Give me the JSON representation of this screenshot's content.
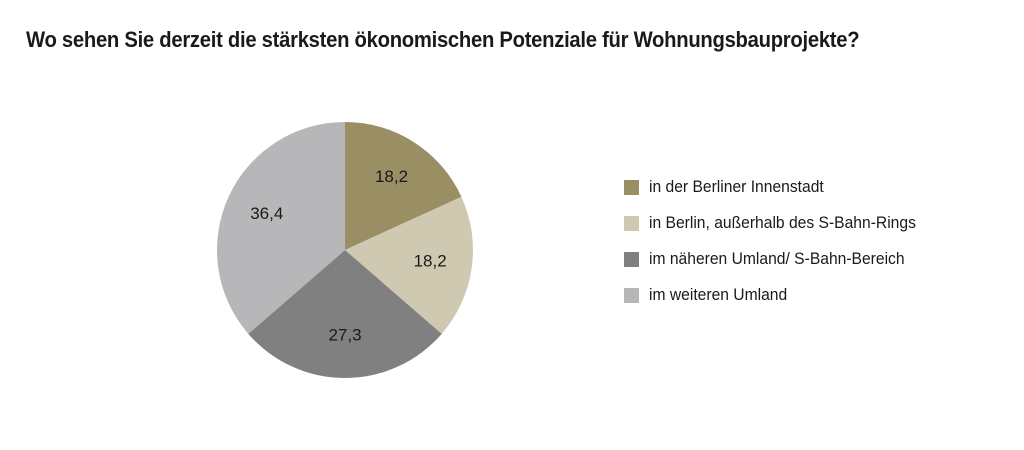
{
  "chart_data": {
    "type": "pie",
    "title": "Wo sehen Sie derzeit die stärksten ökonomischen Potenziale für Wohnungsbauprojekte?",
    "series": [
      {
        "label": "in der Berliner Innenstadt",
        "value": 18.2,
        "display": "18,2",
        "color": "#9a8f64"
      },
      {
        "label": "in Berlin, außerhalb des S-Bahn-Rings",
        "value": 18.2,
        "display": "18,2",
        "color": "#d0c9b2"
      },
      {
        "label": "im näheren Umland/ S-Bahn-Bereich",
        "value": 27.3,
        "display": "27,3",
        "color": "#808080"
      },
      {
        "label": "im weiteren Umland",
        "value": 36.4,
        "display": "36,4",
        "color": "#b7b6b8"
      }
    ],
    "legend_position": "right"
  }
}
